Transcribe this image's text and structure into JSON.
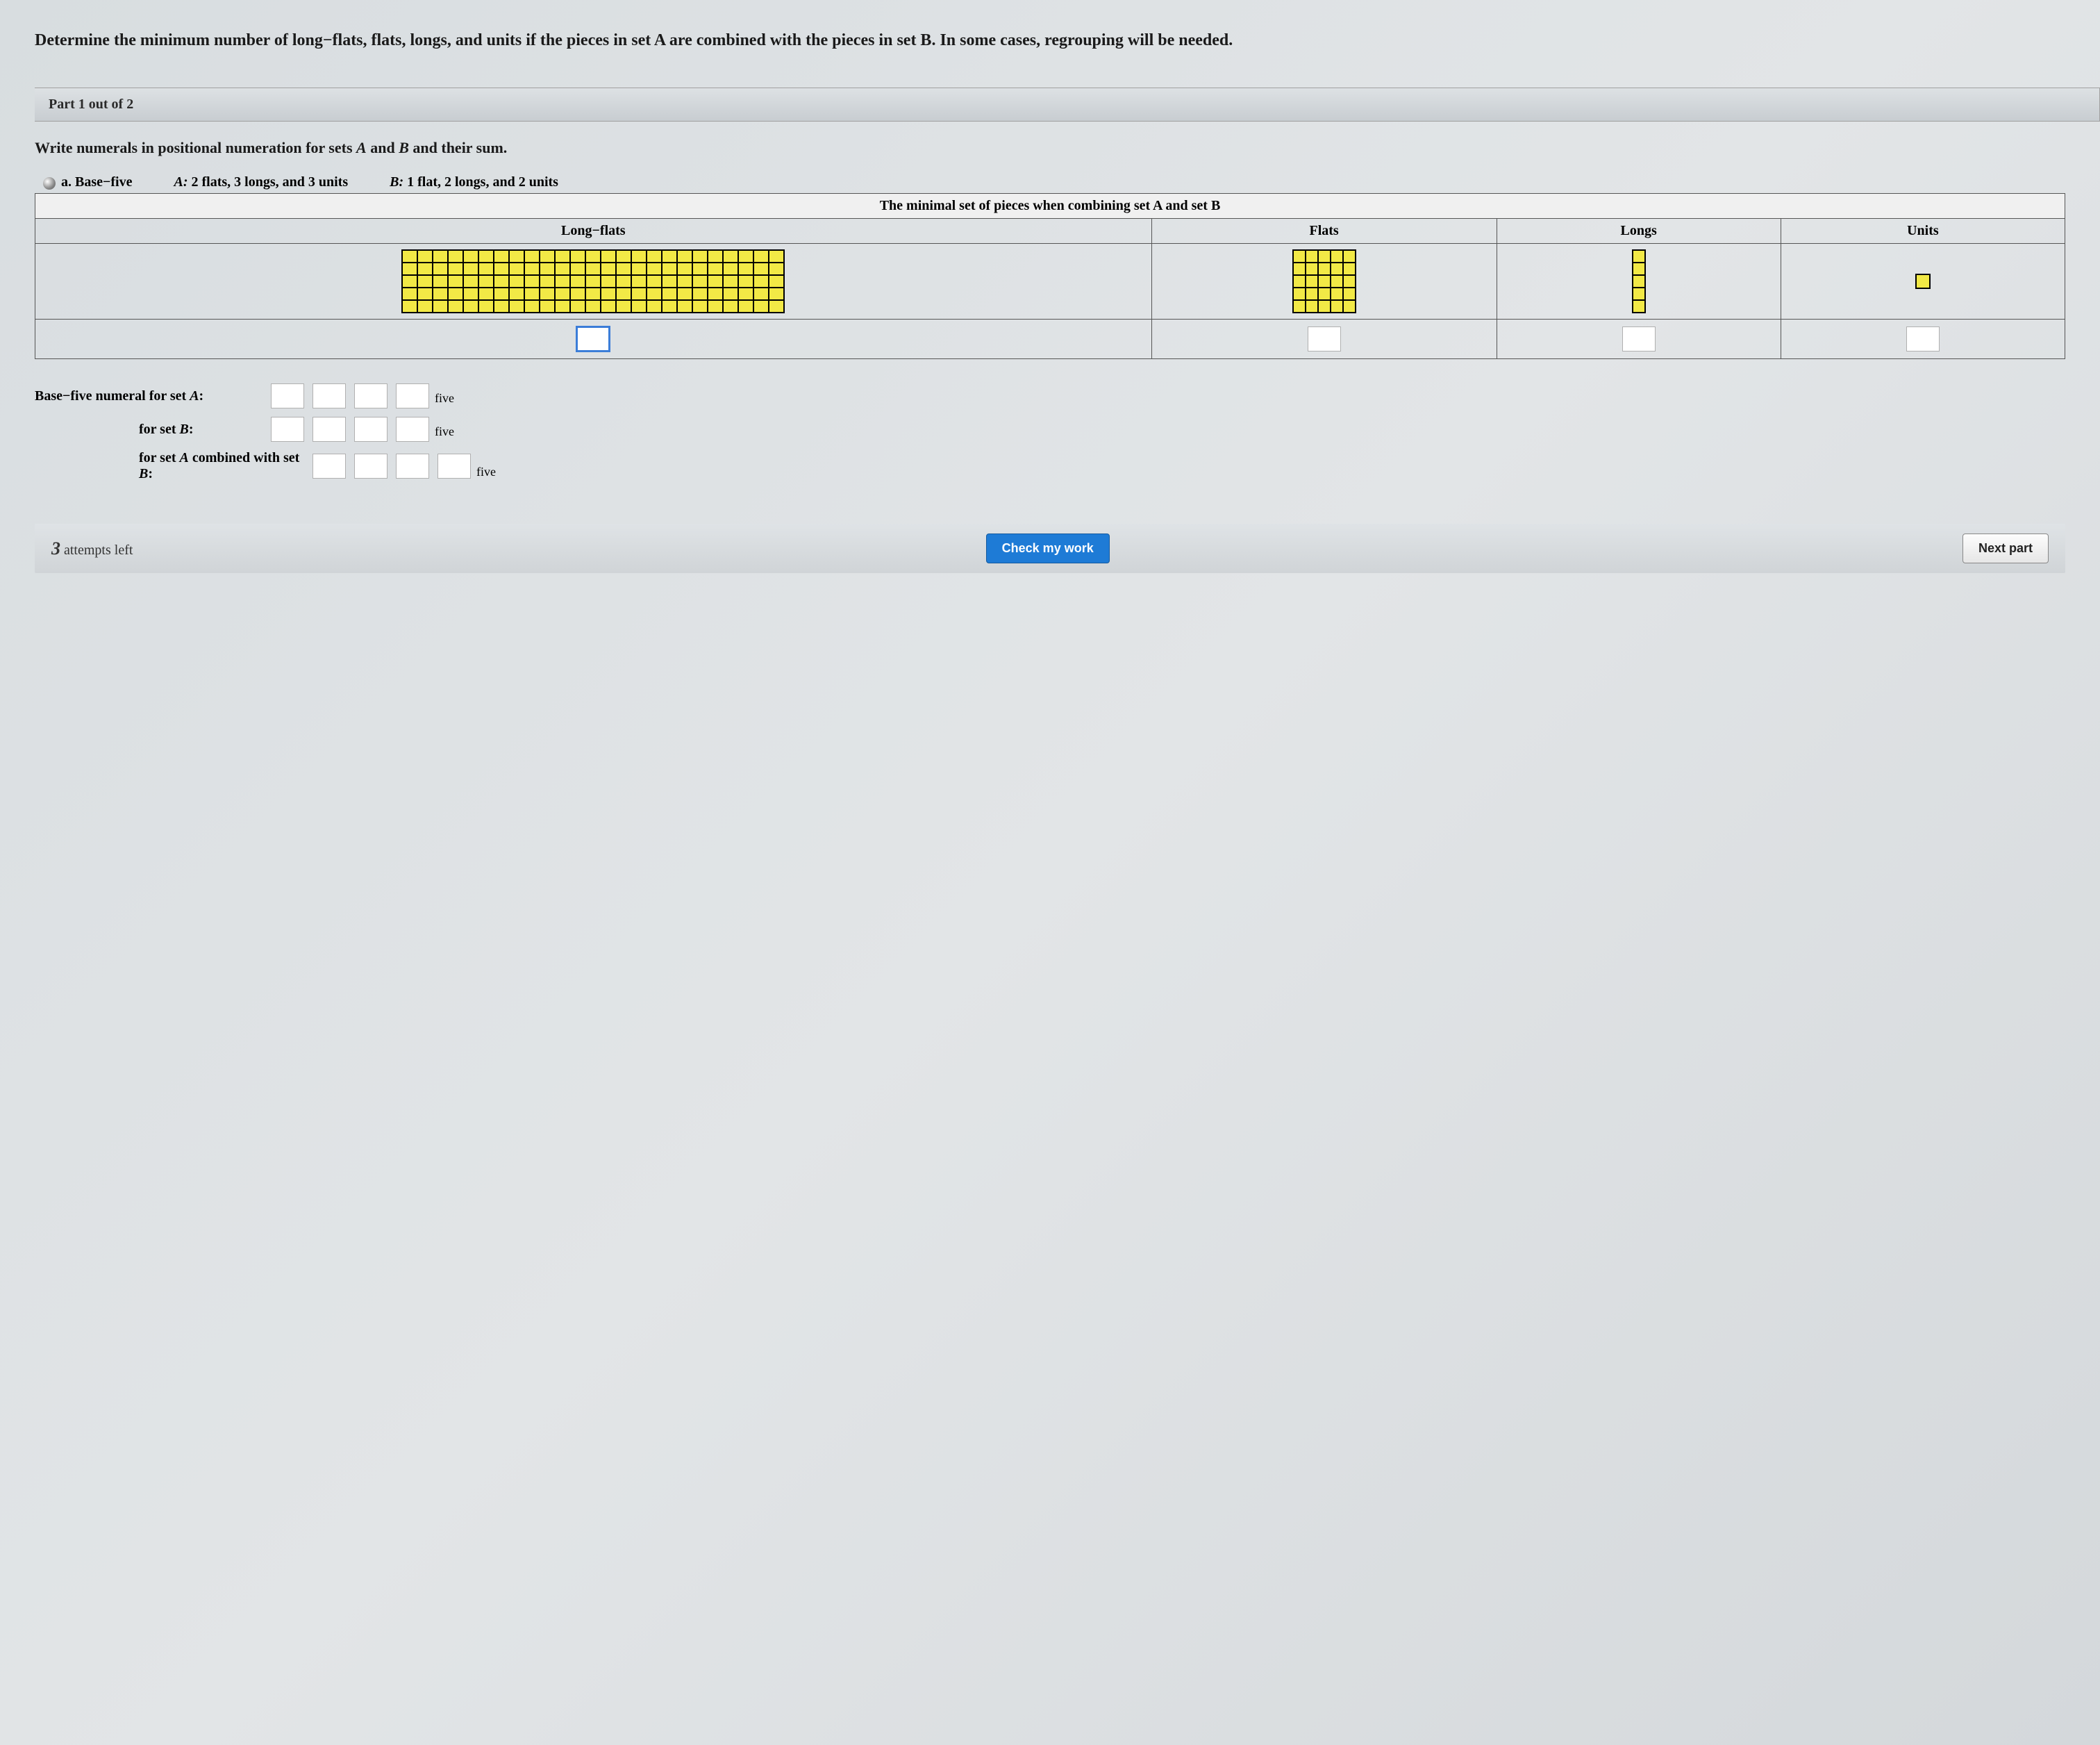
{
  "question": "Determine the minimum number of long−flats, flats, longs, and units if the pieces in set A are combined with the pieces in set B. In some cases, regrouping will be needed.",
  "part_banner": "Part 1 out of 2",
  "subquestion": "Write numerals in positional numeration for sets A and B and their sum.",
  "problem": {
    "letter": "a.",
    "base_label": "Base−five",
    "setA_label": "A:",
    "setA_desc": "2 flats, 3 longs, and 3 units",
    "setB_label": "B:",
    "setB_desc": "1 flat, 2 longs, and 2 units"
  },
  "table": {
    "caption": "The minimal set of pieces when combining set A and set B",
    "cols": {
      "longflats": "Long−flats",
      "flats": "Flats",
      "longs": "Longs",
      "units": "Units"
    },
    "pieces": {
      "longflats_count": 1,
      "flats_count": 1,
      "longs_count": 1,
      "units_count": 1,
      "base": 5,
      "piece_fill": "#f2e946",
      "piece_border": "#000000"
    }
  },
  "numeral_rows": {
    "rowA": {
      "label": "Base−five numeral for set A:",
      "boxes": 4,
      "subscript": "five"
    },
    "rowB": {
      "label": "for set B:",
      "boxes": 4,
      "subscript": "five"
    },
    "rowAB": {
      "label": "for set A combined with set B:",
      "boxes": 4,
      "subscript": "five"
    }
  },
  "footer": {
    "attempts_num": "3",
    "attempts_text": "attempts left",
    "check_btn": "Check my work",
    "next_btn": "Next part"
  },
  "colors": {
    "banner_bg_top": "#dde1e4",
    "banner_bg_bottom": "#c8cdd1",
    "primary_btn_bg": "#1e7bd6",
    "body_bg": "#dde0e3"
  }
}
